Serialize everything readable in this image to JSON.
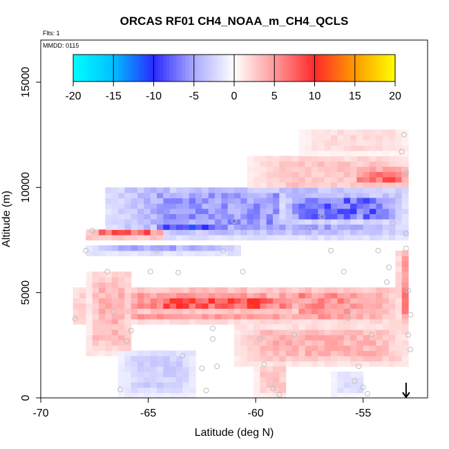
{
  "chart_data": {
    "type": "heatmap",
    "title": "ORCAS RF01 CH4_NOAA_m_CH4_QCLS",
    "flights_label": "Flts: 1",
    "date_label": "MMDD: 0115",
    "xlabel": "Latitude (deg N)",
    "ylabel": "Altitude (m)",
    "xlim": [
      -70,
      -52
    ],
    "ylim": [
      0,
      17000
    ],
    "x_ticks": [
      -70,
      -65,
      -60,
      -55
    ],
    "x_tick_labels": [
      "-70",
      "-65",
      "-60",
      "-55"
    ],
    "y_ticks": [
      0,
      5000,
      10000,
      15000
    ],
    "y_tick_labels": [
      "0",
      "5000",
      "10000",
      "15000"
    ],
    "colorbar": {
      "range": [
        -20,
        20
      ],
      "ticks": [
        -20,
        -15,
        -10,
        -5,
        0,
        5,
        10,
        15,
        20
      ],
      "tick_labels": [
        "-20",
        "-15",
        "-10",
        "-5",
        "0",
        "5",
        "10",
        "15",
        "20"
      ],
      "colors": [
        {
          "v": -20,
          "c": "#00ffff"
        },
        {
          "v": -15,
          "c": "#00bfff"
        },
        {
          "v": -10,
          "c": "#2a2aff"
        },
        {
          "v": -5,
          "c": "#a9a9ff"
        },
        {
          "v": 0,
          "c": "#ffffff"
        },
        {
          "v": 5,
          "c": "#ff9a9a"
        },
        {
          "v": 10,
          "c": "#ff2a2a"
        },
        {
          "v": 15,
          "c": "#ff9a00"
        },
        {
          "v": 20,
          "c": "#ffff00"
        }
      ]
    },
    "cell_size": {
      "dlat": 0.3,
      "dalt": 250
    },
    "field_regions": [
      {
        "name": "upper-positive-band",
        "lat": [
          -60.5,
          -53.0
        ],
        "alt": [
          9500,
          11500
        ],
        "value": 3
      },
      {
        "name": "upper-strong-positive",
        "lat": [
          -55.5,
          -53.0
        ],
        "alt": [
          10000,
          10800
        ],
        "value": 8
      },
      {
        "name": "top-sparse-positive",
        "lat": [
          -58.0,
          -53.0
        ],
        "alt": [
          11500,
          12700
        ],
        "value": 2
      },
      {
        "name": "upper-negative-band",
        "lat": [
          -67.0,
          -53.0
        ],
        "alt": [
          7500,
          10000
        ],
        "value": -6
      },
      {
        "name": "upper-negative-core",
        "lat": [
          -65.0,
          -62.0
        ],
        "alt": [
          7800,
          8300
        ],
        "value": -10
      },
      {
        "name": "right-negative",
        "lat": [
          -59.0,
          -53.5
        ],
        "alt": [
          8300,
          9600
        ],
        "value": -8
      },
      {
        "name": "red-streak-7800",
        "lat": [
          -68.0,
          -64.5
        ],
        "alt": [
          7600,
          8000
        ],
        "value": 8
      },
      {
        "name": "negative-7000",
        "lat": [
          -68.0,
          -61.0
        ],
        "alt": [
          6800,
          7200
        ],
        "value": -5
      },
      {
        "name": "main-positive-band",
        "lat": [
          -68.5,
          -53.0
        ],
        "alt": [
          3600,
          5200
        ],
        "value": 6
      },
      {
        "name": "main-positive-core",
        "lat": [
          -66.0,
          -58.0
        ],
        "alt": [
          4000,
          4800
        ],
        "value": 9
      },
      {
        "name": "left-positive-fan",
        "lat": [
          -68.0,
          -66.0
        ],
        "alt": [
          2000,
          6000
        ],
        "value": 4
      },
      {
        "name": "right-vertical-positive",
        "lat": [
          -53.5,
          -53.0
        ],
        "alt": [
          3000,
          7000
        ],
        "value": 6
      },
      {
        "name": "lower-right-positive",
        "lat": [
          -61.0,
          -53.0
        ],
        "alt": [
          1500,
          3300
        ],
        "value": 4
      },
      {
        "name": "lower-left-negative",
        "lat": [
          -66.5,
          -63.0
        ],
        "alt": [
          0,
          2200
        ],
        "value": -3
      },
      {
        "name": "bottom-mid-positive",
        "lat": [
          -60.0,
          -58.5
        ],
        "alt": [
          0,
          1500
        ],
        "value": 3
      },
      {
        "name": "bottom-right-negative",
        "lat": [
          -56.5,
          -55.0
        ],
        "alt": [
          0,
          1200
        ],
        "value": -2
      }
    ],
    "sample_points": [
      [
        -68.4,
        3750
      ],
      [
        -67.9,
        7000
      ],
      [
        -67.6,
        7950
      ],
      [
        -66.9,
        6000
      ],
      [
        -66.6,
        4100
      ],
      [
        -66.3,
        400
      ],
      [
        -66.0,
        2700
      ],
      [
        -65.8,
        3200
      ],
      [
        -64.9,
        6000
      ],
      [
        -64.6,
        7000
      ],
      [
        -63.6,
        5950
      ],
      [
        -63.4,
        2000
      ],
      [
        -62.5,
        1400
      ],
      [
        -62.3,
        350
      ],
      [
        -62.0,
        3300
      ],
      [
        -62.0,
        2800
      ],
      [
        -61.8,
        1500
      ],
      [
        -61.5,
        7000
      ],
      [
        -61.0,
        8400
      ],
      [
        -60.6,
        6000
      ],
      [
        -59.8,
        2800
      ],
      [
        -59.6,
        1600
      ],
      [
        -59.2,
        450
      ],
      [
        -58.9,
        150
      ],
      [
        -58.2,
        3000
      ],
      [
        -57.5,
        8000
      ],
      [
        -56.9,
        8600
      ],
      [
        -56.5,
        7000
      ],
      [
        -55.9,
        6000
      ],
      [
        -55.7,
        3800
      ],
      [
        -55.6,
        4200
      ],
      [
        -55.4,
        800
      ],
      [
        -55.2,
        1500
      ],
      [
        -55.0,
        500
      ],
      [
        -54.8,
        200
      ],
      [
        -54.6,
        3000
      ],
      [
        -54.3,
        7000
      ],
      [
        -53.9,
        5500
      ],
      [
        -53.8,
        6200
      ],
      [
        -53.6,
        8300
      ],
      [
        -53.4,
        9600
      ],
      [
        -53.2,
        11700
      ],
      [
        -53.1,
        12500
      ],
      [
        -53.0,
        10700
      ],
      [
        -53.0,
        7800
      ],
      [
        -53.0,
        7100
      ],
      [
        -52.9,
        5100
      ],
      [
        -52.8,
        3950
      ],
      [
        -52.8,
        2300
      ],
      [
        -52.9,
        2990
      ]
    ],
    "arrow_marker": {
      "lat": -53.0,
      "alt": 0,
      "direction": "down"
    }
  }
}
